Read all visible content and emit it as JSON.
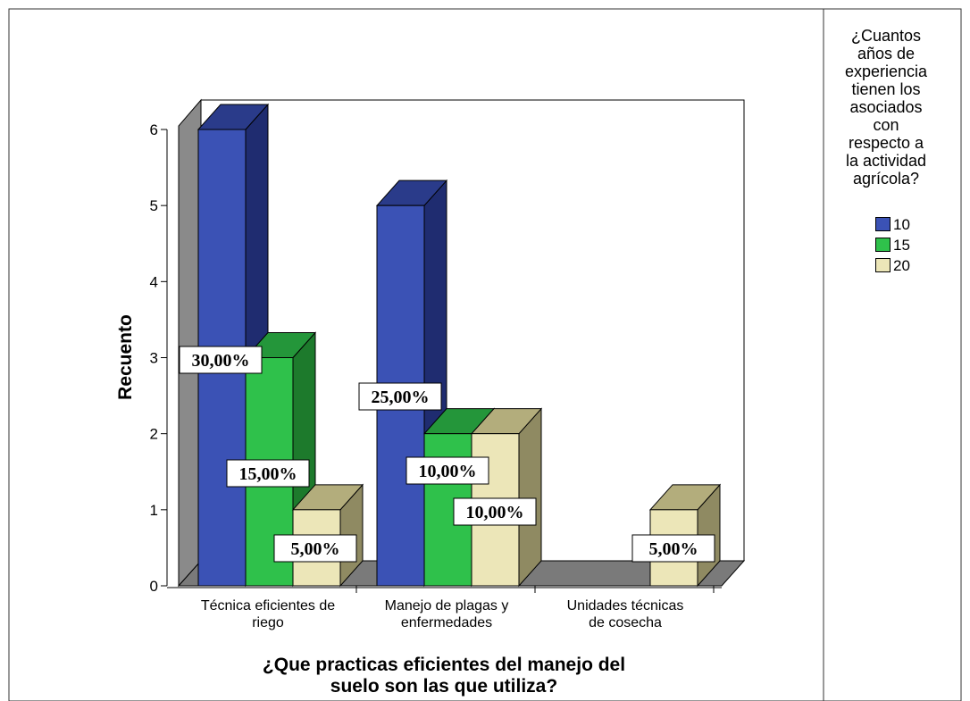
{
  "chart_data": {
    "type": "bar",
    "style": "3d-clustered",
    "categories": [
      [
        "Técnica eficientes de",
        "riego"
      ],
      [
        "Manejo de plagas y",
        "enfermedades"
      ],
      [
        "Unidades técnicas",
        "de cosecha"
      ]
    ],
    "series": [
      {
        "name": "10",
        "values": [
          6,
          5,
          0
        ],
        "labels": [
          "30,00%",
          "25,00%",
          ""
        ]
      },
      {
        "name": "15",
        "values": [
          3,
          2,
          0
        ],
        "labels": [
          "15,00%",
          "10,00%",
          ""
        ]
      },
      {
        "name": "20",
        "values": [
          1,
          2,
          1
        ],
        "labels": [
          "5,00%",
          "10,00%",
          "5,00%"
        ]
      }
    ],
    "xlabel": [
      "¿Que practicas eficientes del manejo del",
      "suelo son las que utiliza?"
    ],
    "ylabel": "Recuento",
    "ylim": [
      0,
      6
    ],
    "yticks": [
      0,
      1,
      2,
      3,
      4,
      5,
      6
    ],
    "legend": {
      "title": [
        "¿Cuantos",
        "años de",
        "experiencia",
        "tienen los",
        "asociados",
        "con",
        "respecto a",
        "la actividad",
        "agrícola?"
      ],
      "position": "right"
    },
    "colors": {
      "10": {
        "front": "#3b52b5",
        "side": "#1f2c70",
        "top": "#2a3b8a"
      },
      "15": {
        "front": "#2fc14b",
        "side": "#1d7a2c",
        "top": "#24963a"
      },
      "20": {
        "front": "#ece6b8",
        "side": "#8f8a62",
        "top": "#b3ad7c"
      },
      "wall": "#8a8a8a",
      "floor": "#7a7a7a"
    }
  }
}
